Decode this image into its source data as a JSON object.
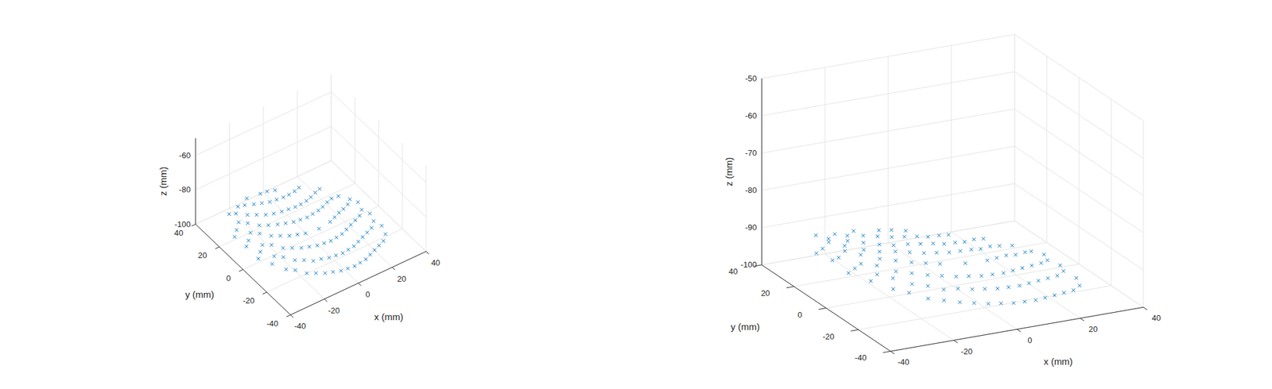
{
  "chart_data": [
    {
      "type": "scatter3d",
      "color": "#0072bd",
      "marker": "x",
      "grid": true,
      "xlabel": "x (mm)",
      "ylabel": "y (mm)",
      "zlabel": "z (mm)",
      "xlim": [
        -40,
        40
      ],
      "ylim": [
        -40,
        40
      ],
      "zlim": [
        -100,
        -50
      ],
      "xticks": [
        -40,
        -20,
        0,
        20,
        40
      ],
      "yticks": [
        -40,
        -20,
        0,
        20,
        40
      ],
      "zticks": [
        -100,
        -80,
        -60
      ],
      "x": [
        -38,
        -38,
        -38,
        -30,
        -30,
        -30,
        -30,
        -30,
        -30,
        -22,
        -22,
        -22,
        -22,
        -22,
        -22,
        -22,
        -14,
        -14,
        -14,
        -14,
        -14,
        -14,
        -14,
        -14,
        -6,
        -6,
        -6,
        -6,
        -6,
        -6,
        -6,
        -6,
        2,
        2,
        2,
        2,
        2,
        2,
        2,
        2,
        10,
        10,
        10,
        10,
        10,
        10,
        10,
        18,
        18,
        18,
        18,
        18,
        18,
        26,
        26,
        26,
        26,
        26,
        32,
        32,
        32,
        -34,
        -34,
        -34,
        -34,
        -26,
        -26,
        -26,
        -26,
        -26,
        -26,
        -18,
        -18,
        -18,
        -18,
        -18,
        -18,
        -18,
        -10,
        -10,
        -10,
        -10,
        -10,
        -10,
        -10,
        -2,
        -2,
        -2,
        -2,
        -2,
        -2,
        -2,
        6,
        6,
        6,
        6,
        6,
        6,
        14,
        14,
        14,
        14,
        14,
        14,
        14,
        22,
        22,
        22,
        22,
        22,
        22,
        30,
        30,
        30,
        30
      ],
      "y": [
        -10,
        0,
        10,
        -22,
        -12,
        -2,
        8,
        18,
        26,
        -28,
        -18,
        -8,
        2,
        12,
        22,
        30,
        -32,
        -22,
        -12,
        -2,
        8,
        18,
        28,
        34,
        -34,
        -24,
        -14,
        -4,
        6,
        16,
        26,
        34,
        -34,
        -24,
        -14,
        -4,
        6,
        16,
        26,
        33,
        -32,
        -22,
        -12,
        -2,
        8,
        18,
        28,
        -28,
        -18,
        -8,
        2,
        12,
        22,
        -24,
        -14,
        -4,
        6,
        14,
        -14,
        -4,
        6,
        -16,
        -6,
        4,
        14,
        -24,
        -14,
        -4,
        6,
        16,
        26,
        -30,
        -20,
        -10,
        0,
        10,
        20,
        30,
        -33,
        -23,
        -13,
        -3,
        7,
        17,
        27,
        -34,
        -24,
        -14,
        6,
        16,
        26,
        34,
        -33,
        -23,
        -13,
        7,
        17,
        27,
        -30,
        -20,
        -10,
        0,
        10,
        20,
        30,
        -26,
        -16,
        -6,
        4,
        14,
        24,
        -20,
        -10,
        0,
        10
      ],
      "z": [
        -88,
        -87.5,
        -88.5,
        -90,
        -89,
        -89,
        -88.5,
        -89,
        -89.5,
        -92,
        -91,
        -90.5,
        -90,
        -90.5,
        -91,
        -91.5,
        -93,
        -92.5,
        -91.5,
        -91,
        -91,
        -92,
        -92.5,
        -93,
        -94,
        -93,
        -92.5,
        -92,
        -92,
        -92.5,
        -93.5,
        -94,
        -95,
        -94,
        -93.5,
        -93,
        -93,
        -93.5,
        -94.5,
        -95,
        -96,
        -95,
        -94.5,
        -94,
        -94,
        -95,
        -96,
        -97,
        -96,
        -95.5,
        -95,
        -95.5,
        -96.5,
        -98,
        -97,
        -96.5,
        -96.5,
        -97,
        -98.5,
        -98,
        -98,
        -89,
        -88.5,
        -88.5,
        -89,
        -91,
        -90,
        -89.5,
        -89.5,
        -90,
        -91,
        -92.5,
        -91.5,
        -91,
        -90.5,
        -91,
        -91.5,
        -92.5,
        -93.5,
        -92.5,
        -92,
        -91.5,
        -91.5,
        -92.5,
        -93,
        -94.5,
        -93.5,
        -93,
        -92.5,
        -93,
        -94,
        -94.5,
        -95.5,
        -94.5,
        -94,
        -93.5,
        -94.5,
        -95.5,
        -96.5,
        -95.5,
        -95,
        -94.5,
        -95,
        -96,
        -97,
        -97.5,
        -96.5,
        -96,
        -96,
        -96.5,
        -97.5,
        -98.5,
        -97.5,
        -97.5,
        -98
      ]
    },
    {
      "type": "scatter3d",
      "color": "#0072bd",
      "marker": "x",
      "grid": true,
      "xlabel": "x (mm)",
      "ylabel": "y (mm)",
      "zlabel": "z (mm)",
      "xlim": [
        -40,
        40
      ],
      "ylim": [
        -40,
        40
      ],
      "zlim": [
        -100,
        -50
      ],
      "xticks": [
        -40,
        -20,
        0,
        20,
        40
      ],
      "yticks": [
        -40,
        -20,
        0,
        20,
        40
      ],
      "zticks": [
        -100,
        -90,
        -80,
        -70,
        -60,
        -50
      ],
      "x": [
        -38,
        -38,
        -38,
        -30,
        -30,
        -30,
        -30,
        -30,
        -30,
        -22,
        -22,
        -22,
        -22,
        -22,
        -22,
        -22,
        -14,
        -14,
        -14,
        -14,
        -14,
        -14,
        -14,
        -14,
        -6,
        -6,
        -6,
        -6,
        -6,
        -6,
        -6,
        -6,
        2,
        2,
        2,
        2,
        2,
        2,
        2,
        2,
        10,
        10,
        10,
        10,
        10,
        10,
        10,
        18,
        18,
        18,
        18,
        18,
        18,
        26,
        26,
        26,
        26,
        26,
        32,
        32,
        32,
        -34,
        -34,
        -34,
        -34,
        -26,
        -26,
        -26,
        -26,
        -26,
        -26,
        -18,
        -18,
        -18,
        -18,
        -18,
        -18,
        -18,
        -10,
        -10,
        -10,
        -10,
        -10,
        -10,
        -10,
        -2,
        -2,
        -2,
        -2,
        -2,
        -2,
        -2,
        6,
        6,
        6,
        6,
        6,
        6,
        14,
        14,
        14,
        14,
        14,
        14,
        14,
        22,
        22,
        22,
        22,
        22,
        22,
        30,
        30,
        30,
        30
      ],
      "y": [
        -10,
        0,
        10,
        -22,
        -12,
        -2,
        8,
        18,
        26,
        -28,
        -18,
        -8,
        2,
        12,
        22,
        30,
        -32,
        -22,
        -12,
        -2,
        8,
        18,
        28,
        34,
        -34,
        -24,
        -14,
        -4,
        6,
        16,
        26,
        34,
        -34,
        -24,
        -14,
        -4,
        6,
        16,
        26,
        33,
        -32,
        -22,
        -12,
        -2,
        8,
        18,
        28,
        -28,
        -18,
        -8,
        2,
        12,
        22,
        -24,
        -14,
        -4,
        6,
        14,
        -14,
        -4,
        6,
        -16,
        -6,
        4,
        14,
        -24,
        -14,
        -4,
        6,
        16,
        26,
        -30,
        -20,
        -10,
        0,
        10,
        20,
        30,
        -33,
        -23,
        -13,
        -3,
        7,
        17,
        27,
        -34,
        -24,
        -14,
        6,
        16,
        26,
        34,
        -33,
        -23,
        -13,
        7,
        17,
        27,
        -30,
        -20,
        -10,
        0,
        10,
        20,
        30,
        -26,
        -16,
        -6,
        4,
        14,
        24,
        -20,
        -10,
        0,
        10
      ],
      "z": [
        -88,
        -87.5,
        -88.5,
        -90,
        -89,
        -89,
        -88.5,
        -89,
        -89.5,
        -92,
        -91,
        -90.5,
        -90,
        -90.5,
        -91,
        -91.5,
        -93,
        -92.5,
        -91.5,
        -91,
        -91,
        -92,
        -92.5,
        -93,
        -94,
        -93,
        -92.5,
        -92,
        -92,
        -92.5,
        -93.5,
        -94,
        -95,
        -94,
        -93.5,
        -93,
        -93,
        -93.5,
        -94.5,
        -95,
        -96,
        -95,
        -94.5,
        -94,
        -94,
        -95,
        -96,
        -97,
        -96,
        -95.5,
        -95,
        -95.5,
        -96.5,
        -98,
        -97,
        -96.5,
        -96.5,
        -97,
        -98.5,
        -98,
        -98,
        -89,
        -88.5,
        -88.5,
        -89,
        -91,
        -90,
        -89.5,
        -89.5,
        -90,
        -91,
        -92.5,
        -91.5,
        -91,
        -90.5,
        -91,
        -91.5,
        -92.5,
        -93.5,
        -92.5,
        -92,
        -91.5,
        -91.5,
        -92.5,
        -93,
        -94.5,
        -93.5,
        -93,
        -92.5,
        -93,
        -94,
        -94.5,
        -95.5,
        -94.5,
        -94,
        -93.5,
        -94.5,
        -95.5,
        -96.5,
        -95.5,
        -95,
        -94.5,
        -95,
        -96,
        -97,
        -97.5,
        -96.5,
        -96,
        -96,
        -96.5,
        -97.5,
        -98.5,
        -97.5,
        -97.5,
        -98
      ]
    }
  ]
}
